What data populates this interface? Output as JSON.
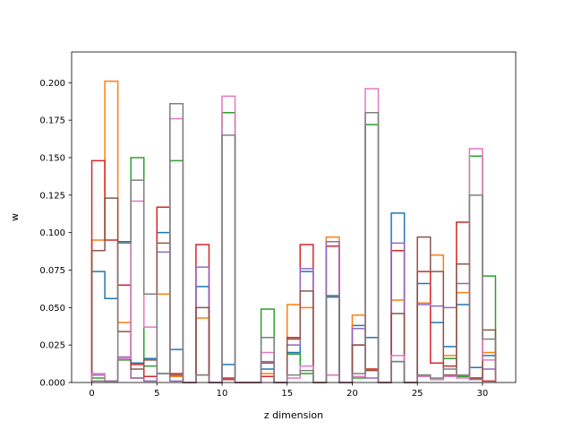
{
  "chart_data": {
    "type": "step-histogram",
    "title": "",
    "xlabel": "z dimension",
    "ylabel": "w",
    "xlim": [
      -1.55,
      32.55
    ],
    "ylim": [
      0,
      0.2205
    ],
    "x_ticks": [
      0,
      5,
      10,
      15,
      20,
      25,
      30
    ],
    "y_ticks": [
      0.0,
      0.025,
      0.05,
      0.075,
      0.1,
      0.125,
      0.15,
      0.175,
      0.2
    ],
    "y_tick_labels": [
      "0.000",
      "0.025",
      "0.050",
      "0.075",
      "0.100",
      "0.125",
      "0.150",
      "0.175",
      "0.200"
    ],
    "bins": [
      0,
      1,
      2,
      3,
      4,
      5,
      6,
      7,
      8,
      9,
      10,
      11,
      12,
      13,
      14,
      15,
      16,
      17,
      18,
      19,
      20,
      21,
      22,
      23,
      24,
      25,
      26,
      27,
      28,
      29,
      30,
      31
    ],
    "grid": false,
    "series": [
      {
        "color": "#1f77b4",
        "values": [
          0.074,
          0.056,
          0.094,
          0.013,
          0.016,
          0.1,
          0.022,
          0,
          0.064,
          0,
          0.012,
          0,
          0,
          0.009,
          0,
          0.02,
          0.074,
          0,
          0.057,
          0,
          0.038,
          0.03,
          0,
          0.113,
          0,
          0.066,
          0.04,
          0.024,
          0.052,
          0.01,
          0.018
        ]
      },
      {
        "color": "#ff7f0e",
        "values": [
          0.095,
          0.201,
          0.04,
          0.003,
          0.004,
          0.059,
          0.004,
          0,
          0.043,
          0,
          0.002,
          0,
          0,
          0.006,
          0,
          0.052,
          0.05,
          0,
          0.097,
          0,
          0.045,
          0.009,
          0,
          0.055,
          0,
          0.053,
          0.085,
          0.018,
          0.06,
          0.003,
          0.02
        ]
      },
      {
        "color": "#2ca02c",
        "values": [
          0.003,
          0.001,
          0.015,
          0.15,
          0.011,
          0.006,
          0.148,
          0,
          0.005,
          0,
          0.18,
          0,
          0,
          0.049,
          0,
          0.019,
          0.006,
          0,
          0.005,
          0,
          0.003,
          0.172,
          0,
          0.014,
          0,
          0.005,
          0.002,
          0.016,
          0.004,
          0.151,
          0.071
        ]
      },
      {
        "color": "#d62728",
        "values": [
          0.148,
          0.095,
          0.065,
          0.012,
          0.004,
          0.117,
          0.006,
          0,
          0.092,
          0,
          0.003,
          0,
          0,
          0.004,
          0,
          0.03,
          0.092,
          0,
          0.091,
          0,
          0.025,
          0.009,
          0,
          0.088,
          0,
          0.074,
          0.013,
          0.011,
          0.107,
          0.003,
          0.001
        ]
      },
      {
        "color": "#9467bd",
        "values": [
          0.005,
          0.001,
          0.017,
          0.003,
          0.001,
          0.087,
          0.001,
          0,
          0.077,
          0,
          0.002,
          0,
          0,
          0.014,
          0,
          0.025,
          0.076,
          0,
          0.094,
          0,
          0.036,
          0.003,
          0,
          0.093,
          0,
          0.052,
          0.051,
          0.05,
          0.066,
          0.002,
          0.009
        ]
      },
      {
        "color": "#8c564b",
        "values": [
          0.088,
          0.123,
          0.034,
          0.009,
          0.015,
          0.093,
          0.005,
          0,
          0.05,
          0,
          0.002,
          0,
          0,
          0.013,
          0,
          0.029,
          0.061,
          0,
          0.058,
          0,
          0.025,
          0.008,
          0,
          0.046,
          0,
          0.097,
          0.074,
          0.005,
          0.079,
          0.003,
          0.035
        ]
      },
      {
        "color": "#e377c2",
        "values": [
          0.006,
          0.001,
          0.016,
          0.121,
          0.037,
          0.006,
          0.176,
          0,
          0.005,
          0,
          0.191,
          0,
          0,
          0.02,
          0,
          0.003,
          0.011,
          0,
          0.005,
          0,
          0.004,
          0.196,
          0,
          0.018,
          0,
          0.004,
          0.002,
          0.004,
          0.003,
          0.156,
          0.015
        ]
      },
      {
        "color": "#7f7f7f",
        "values": [
          0.001,
          0.001,
          0.093,
          0.135,
          0.059,
          0.006,
          0.186,
          0,
          0.005,
          0,
          0.165,
          0,
          0,
          0.03,
          0,
          0.005,
          0.008,
          0,
          0.058,
          0,
          0.006,
          0.18,
          0,
          0.014,
          0,
          0.005,
          0.003,
          0.009,
          0.005,
          0.125,
          0.029
        ]
      }
    ]
  }
}
